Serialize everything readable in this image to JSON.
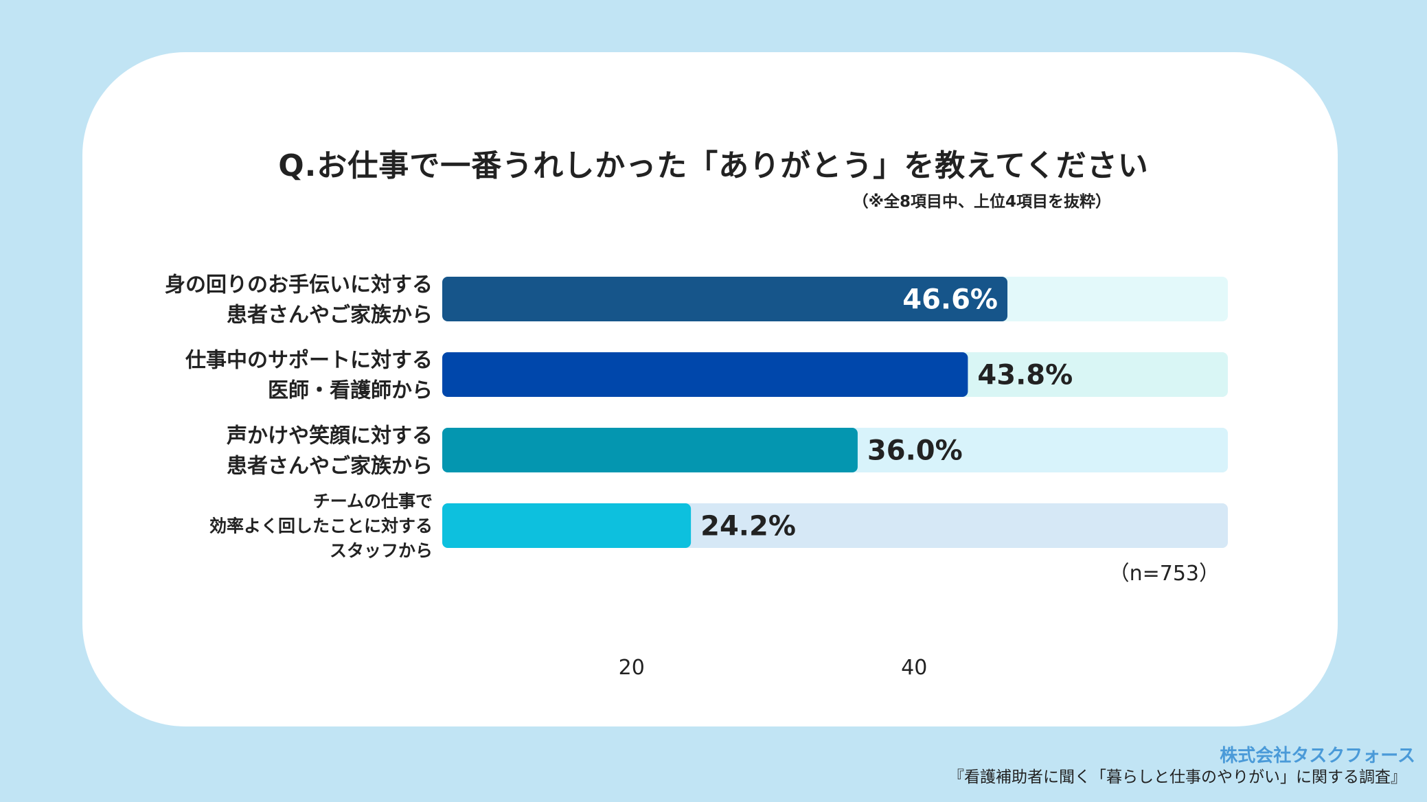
{
  "title": "Q.お仕事で一番うれしかった「ありがとう」を教えてください",
  "subtitle": "（※全8項目中、上位4項目を抜粋）",
  "footer": {
    "company": "株式会社タスクフォース",
    "survey": "『看護補助者に聞く「暮らしと仕事のやりがい」に関する調査』"
  },
  "chart_data": {
    "type": "bar",
    "orientation": "horizontal",
    "title": "Q.お仕事で一番うれしかった「ありがとう」を教えてください",
    "categories": [
      [
        "身の回りのお手伝いに対する",
        "患者さんやご家族から"
      ],
      [
        "仕事中のサポートに対する",
        "医師・看護師から"
      ],
      [
        "声かけや笑顔に対する",
        "患者さんやご家族から"
      ],
      [
        "チームの仕事で",
        "効率よく回したことに対する",
        "スタッフから"
      ]
    ],
    "values": [
      46.6,
      43.8,
      36.0,
      24.2
    ],
    "value_labels": [
      "46.6%",
      "43.8%",
      "36.0%",
      "24.2%"
    ],
    "unit": "%",
    "xlim": [
      6.6,
      62.2
    ],
    "xticks": [
      20,
      40
    ],
    "note": "（n=753）",
    "colors": {
      "bars": [
        "#16558a",
        "#0047ab",
        "#0496b0",
        "#0dc0de"
      ],
      "tracks": [
        "#e3f9fa",
        "#d9f6f5",
        "#d8f3fb",
        "#d6e8f6"
      ],
      "label_inside": "#ffffff",
      "label_outside": "#222222"
    }
  }
}
